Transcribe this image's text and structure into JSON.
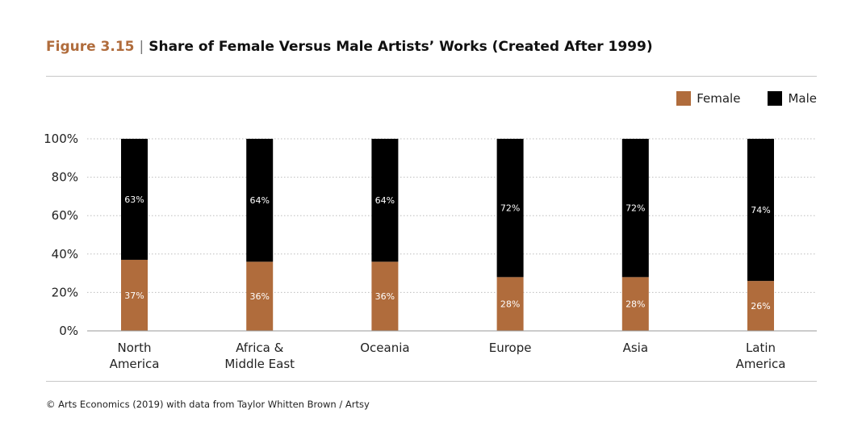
{
  "header": {
    "figure_number": "Figure 3.15",
    "separator": "|",
    "title": "Share of Female Versus Male Artists’ Works (Created After 1999)"
  },
  "colors": {
    "female": "#b06c3c",
    "male": "#000000",
    "accent": "#b06c3c",
    "grid": "#c8c8c8"
  },
  "chart_data": {
    "type": "bar",
    "stacked": true,
    "categories": [
      [
        "North",
        "America"
      ],
      [
        "Africa &",
        "Middle East"
      ],
      [
        "Oceania"
      ],
      [
        "Europe"
      ],
      [
        "Asia"
      ],
      [
        "Latin",
        "America"
      ]
    ],
    "series": [
      {
        "name": "Female",
        "values": [
          37,
          36,
          36,
          28,
          28,
          26
        ],
        "labels": [
          "37%",
          "36%",
          "36%",
          "28%",
          "28%",
          "26%"
        ]
      },
      {
        "name": "Male",
        "values": [
          63,
          64,
          64,
          72,
          72,
          74
        ],
        "labels": [
          "63%",
          "64%",
          "64%",
          "72%",
          "72%",
          "74%"
        ]
      }
    ],
    "ylim": [
      0,
      100
    ],
    "yticks": [
      "0%",
      "20%",
      "40%",
      "60%",
      "80%",
      "100%"
    ],
    "grid": true,
    "legend_position": "top-right"
  },
  "footer": {
    "source": "© Arts Economics (2019) with data from Taylor Whitten Brown / Artsy"
  }
}
